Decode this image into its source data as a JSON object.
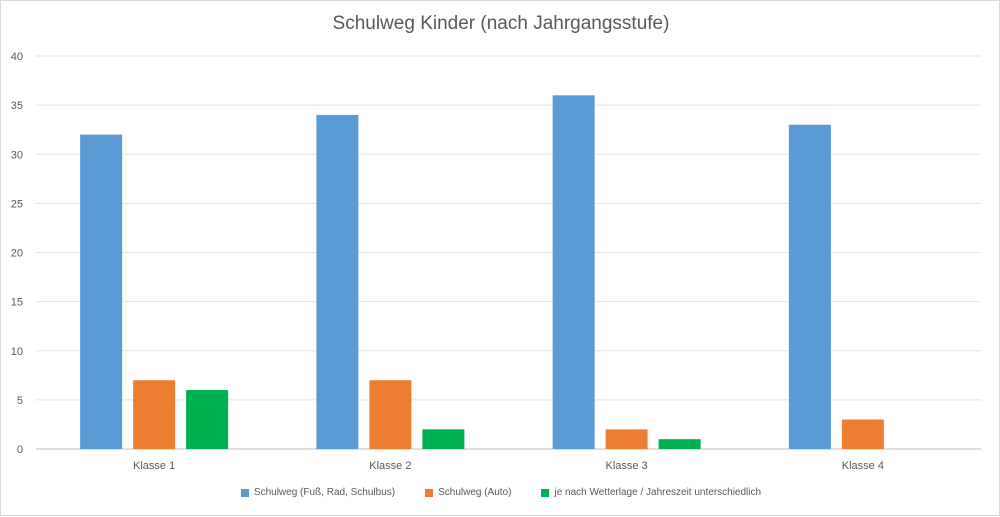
{
  "chart_data": {
    "type": "bar",
    "title": "Schulweg Kinder (nach Jahrgangsstufe)",
    "xlabel": "",
    "ylabel": "",
    "categories": [
      "Klasse 1",
      "Klasse 2",
      "Klasse 3",
      "Klasse 4"
    ],
    "series": [
      {
        "name": "Schulweg  (Fuß, Rad, Schulbus)",
        "color": "#5b9bd5",
        "values": [
          32,
          34,
          36,
          33
        ]
      },
      {
        "name": "Schulweg (Auto)",
        "color": "#ed7d31",
        "values": [
          7,
          7,
          2,
          3
        ]
      },
      {
        "name": "je nach Wetterlage / Jahreszeit unterschiedlich",
        "color": "#00b050",
        "values": [
          6,
          2,
          1,
          0
        ]
      }
    ],
    "ylim": [
      0,
      40
    ],
    "yticks": [
      0,
      5,
      10,
      15,
      20,
      25,
      30,
      35,
      40
    ],
    "grid": true,
    "legend_position": "bottom"
  }
}
